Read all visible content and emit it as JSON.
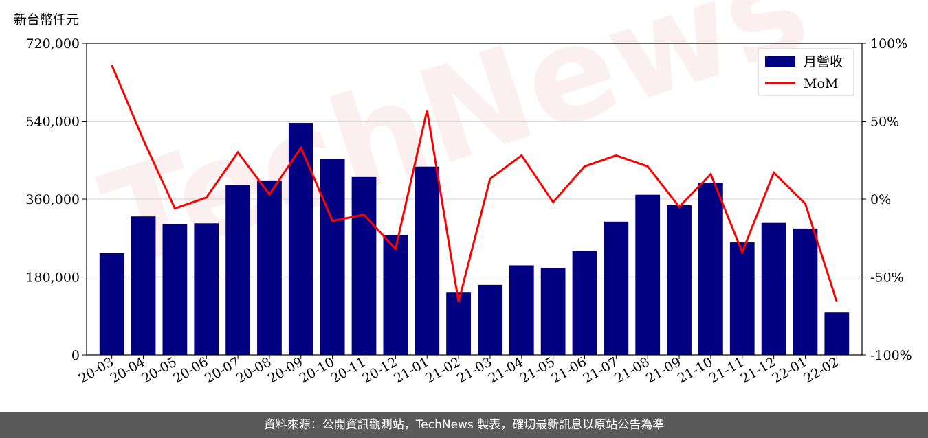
{
  "unit_label": "新台幣仟元",
  "watermark": "TechNews",
  "footer_text": "資料來源：公開資訊觀測站，TechNews 製表，確切最新訊息以原站公告為準",
  "colors": {
    "bar": "#000080",
    "line": "#ff0000",
    "grid": "#d9d9d9",
    "footer_bg": "#595959"
  },
  "chart_data": {
    "type": "bar",
    "categories": [
      "20-03",
      "20-04",
      "20-05",
      "20-06",
      "20-07",
      "20-08",
      "20-09",
      "20-10",
      "20-11",
      "20-12",
      "21-01",
      "21-02",
      "21-03",
      "21-04",
      "21-05",
      "21-06",
      "21-07",
      "21-08",
      "21-09",
      "21-10",
      "21-11",
      "21-12",
      "22-01",
      "22-02"
    ],
    "series": [
      {
        "name": "月營收",
        "type": "bar",
        "axis": "left",
        "values": [
          235000,
          320000,
          302000,
          304000,
          393000,
          403000,
          536000,
          452000,
          411000,
          277000,
          435000,
          144000,
          162000,
          207000,
          201000,
          240000,
          308000,
          370000,
          346000,
          398000,
          260000,
          305000,
          292000,
          98000
        ]
      },
      {
        "name": "MoM",
        "type": "line",
        "axis": "right",
        "values": [
          86,
          38,
          -6,
          1,
          30,
          3,
          33,
          -14,
          -10,
          -32,
          57,
          -66,
          13,
          28,
          -2,
          21,
          28,
          21,
          -5,
          16,
          -34,
          17,
          -3,
          -66
        ]
      }
    ],
    "y_left": {
      "ylim": [
        0,
        720000
      ],
      "ticks": [
        "0",
        "180,000",
        "360,000",
        "540,000",
        "720,000"
      ]
    },
    "y_right": {
      "ylim": [
        -100,
        100
      ],
      "ticks": [
        "-100%",
        "-50%",
        "0%",
        "50%",
        "100%"
      ]
    },
    "grid": "horizontal",
    "legend": "top-right"
  }
}
